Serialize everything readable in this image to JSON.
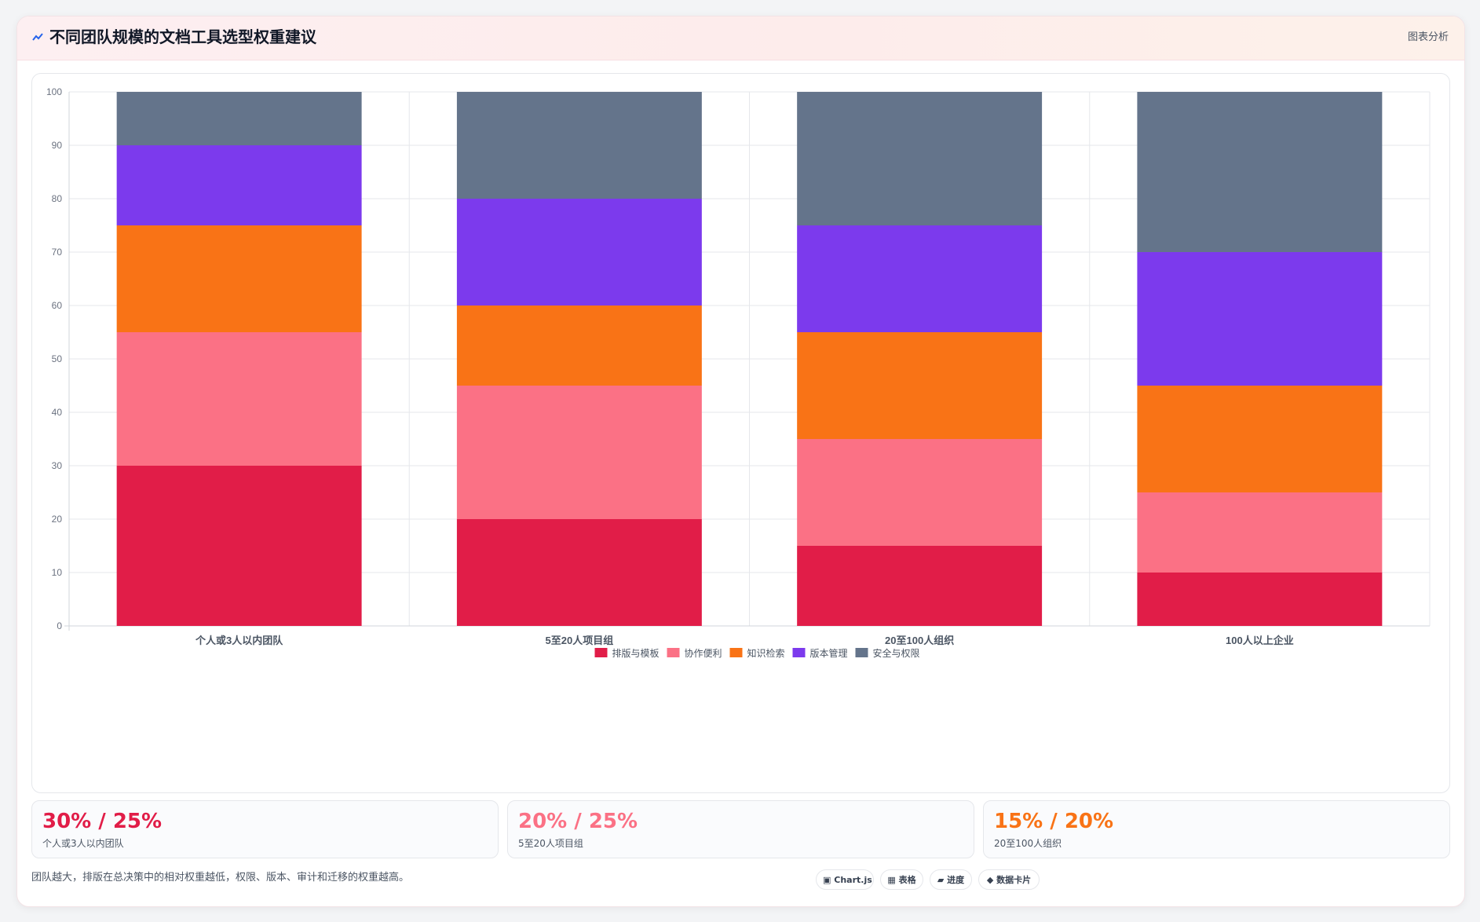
{
  "header": {
    "icon": "trend-icon",
    "title": "不同团队规模的文档工具选型权重建议",
    "link_label": "图表分析"
  },
  "chart_data": {
    "type": "bar",
    "stacked": true,
    "title": "",
    "xlabel": "",
    "ylabel": "",
    "ylim": [
      0,
      100
    ],
    "yticks": [
      0,
      10,
      20,
      30,
      40,
      50,
      60,
      70,
      80,
      90,
      100
    ],
    "grid": true,
    "legend_position": "bottom",
    "categories": [
      "个人或3人以内团队",
      "5至20人项目组",
      "20至100人组织",
      "100人以上企业"
    ],
    "series": [
      {
        "name": "排版与模板",
        "color": "#e11d48",
        "values": [
          30,
          20,
          15,
          10
        ]
      },
      {
        "name": "协作便利",
        "color": "#fb7185",
        "values": [
          25,
          25,
          20,
          15
        ]
      },
      {
        "name": "知识检索",
        "color": "#f97316",
        "values": [
          20,
          15,
          20,
          20
        ]
      },
      {
        "name": "版本管理",
        "color": "#7c3aed",
        "values": [
          15,
          20,
          20,
          25
        ]
      },
      {
        "name": "安全与权限",
        "color": "#64748b",
        "values": [
          10,
          20,
          25,
          30
        ]
      }
    ]
  },
  "stats": [
    {
      "value": "30% / 25%",
      "label": "个人或3人以内团队",
      "color": "#e11d48"
    },
    {
      "value": "20% / 25%",
      "label": "5至20人项目组",
      "color": "#fb7185"
    },
    {
      "value": "15% / 20%",
      "label": "20至100人组织",
      "color": "#f97316"
    }
  ],
  "footer": {
    "note": "团队越大，排版在总决策中的相对权重越低，权限、版本、审计和迁移的权重越高。",
    "pills": [
      {
        "icon": "chart-icon",
        "glyph": "▣",
        "label": "Chart.js"
      },
      {
        "icon": "table-icon",
        "glyph": "▦",
        "label": "表格"
      },
      {
        "icon": "progress-icon",
        "glyph": "▰",
        "label": "进度"
      },
      {
        "icon": "card-icon",
        "glyph": "◆",
        "label": "数据卡片"
      }
    ]
  }
}
